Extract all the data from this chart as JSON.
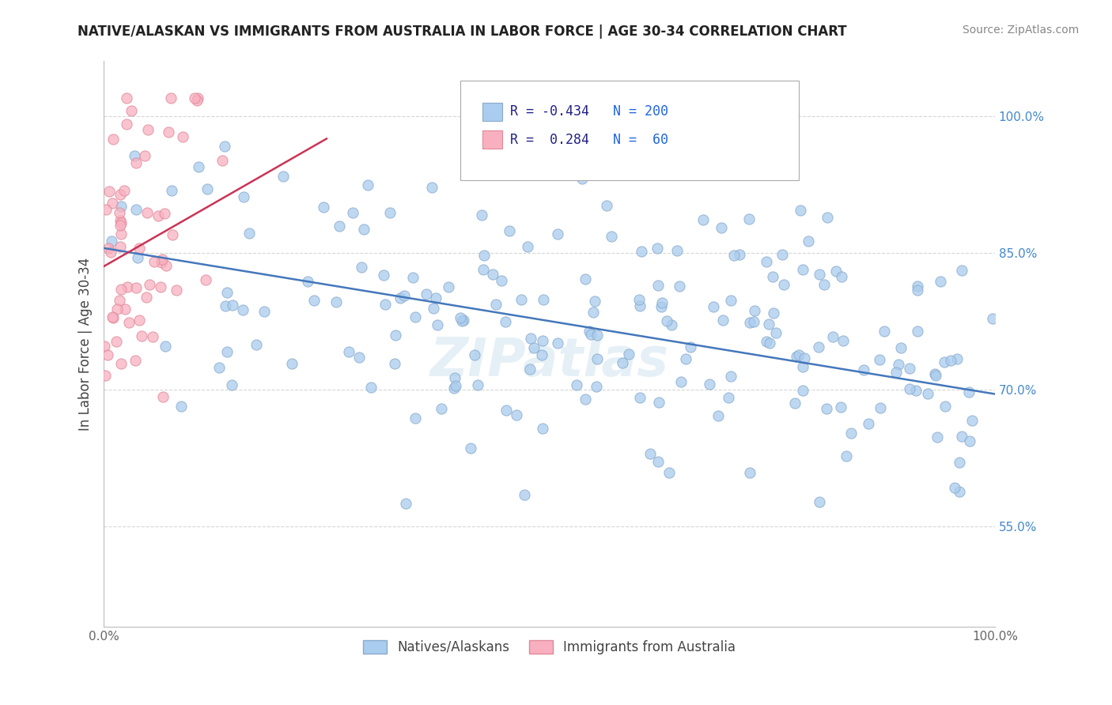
{
  "title": "NATIVE/ALASKAN VS IMMIGRANTS FROM AUSTRALIA IN LABOR FORCE | AGE 30-34 CORRELATION CHART",
  "source": "Source: ZipAtlas.com",
  "ylabel": "In Labor Force | Age 30-34",
  "xlim": [
    0.0,
    1.0
  ],
  "ylim": [
    0.44,
    1.06
  ],
  "ytick_positions": [
    0.55,
    0.7,
    0.85,
    1.0
  ],
  "yticklabels": [
    "55.0%",
    "70.0%",
    "85.0%",
    "100.0%"
  ],
  "watermark": "ZIPatlas",
  "blue_color": "#aaccee",
  "blue_edge": "#88aacc",
  "pink_color": "#f8b0c0",
  "pink_edge": "#e08898",
  "trend_blue": "#4477bb",
  "trend_pink": "#cc3355",
  "R_blue": -0.434,
  "N_blue": 200,
  "R_pink": 0.284,
  "N_pink": 60,
  "grid_color": "#cccccc",
  "background_color": "#ffffff",
  "blue_trend_x": [
    0.0,
    1.0
  ],
  "blue_trend_y": [
    0.855,
    0.695
  ],
  "pink_trend_x": [
    0.0,
    0.25
  ],
  "pink_trend_y": [
    0.835,
    0.975
  ]
}
